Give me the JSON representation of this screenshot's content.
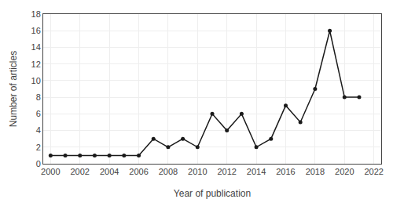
{
  "chart_data": {
    "type": "line",
    "x": [
      2000,
      2001,
      2002,
      2003,
      2004,
      2005,
      2006,
      2007,
      2008,
      2009,
      2010,
      2011,
      2012,
      2013,
      2014,
      2015,
      2016,
      2017,
      2018,
      2019,
      2020,
      2021
    ],
    "values": [
      1,
      1,
      1,
      1,
      1,
      1,
      1,
      3,
      2,
      3,
      2,
      6,
      4,
      6,
      2,
      3,
      7,
      5,
      9,
      16,
      8,
      8
    ],
    "xlabel": "Year of publication",
    "ylabel": "Number of articles",
    "xlim": [
      1999.5,
      2022.5
    ],
    "ylim": [
      0,
      18
    ],
    "xticks": [
      2000,
      2002,
      2004,
      2006,
      2008,
      2010,
      2012,
      2014,
      2016,
      2018,
      2020,
      2022
    ],
    "yticks": [
      0,
      2,
      4,
      6,
      8,
      10,
      12,
      14,
      16,
      18
    ],
    "color": "#1a1a1a",
    "marker": "circle",
    "grid": true
  }
}
